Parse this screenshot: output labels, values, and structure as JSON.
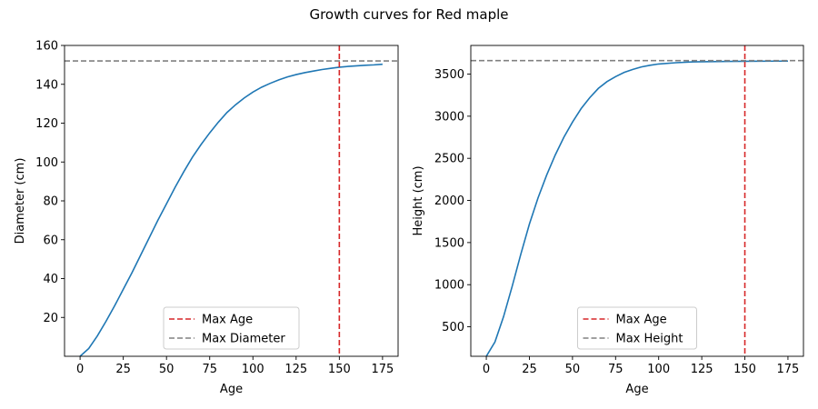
{
  "figure": {
    "title": "Growth curves for Red maple"
  },
  "chart_data": [
    {
      "type": "line",
      "xlabel": "Age",
      "ylabel": "Diameter (cm)",
      "xlim": [
        -9,
        184
      ],
      "ylim": [
        0,
        160
      ],
      "xticks": [
        0,
        25,
        50,
        75,
        100,
        125,
        150,
        175
      ],
      "yticks": [
        20,
        40,
        60,
        80,
        100,
        120,
        140,
        160
      ],
      "grid": false,
      "legend_position": "bottom-center",
      "series": [
        {
          "color": "#1f77b4",
          "style": "solid",
          "x": [
            0,
            5,
            10,
            15,
            20,
            25,
            30,
            35,
            40,
            45,
            50,
            55,
            60,
            65,
            70,
            75,
            80,
            85,
            90,
            95,
            100,
            105,
            110,
            115,
            120,
            125,
            130,
            135,
            140,
            145,
            150,
            155,
            160,
            165,
            170,
            175
          ],
          "y": [
            0,
            4,
            10.5,
            18,
            26,
            34.5,
            43,
            52,
            61,
            70,
            78.5,
            87,
            95,
            102.5,
            109,
            115,
            120.5,
            125.5,
            129.5,
            133,
            136,
            138.5,
            140.5,
            142.3,
            143.8,
            145,
            146,
            146.8,
            147.6,
            148.2,
            148.8,
            149.2,
            149.5,
            149.8,
            150,
            150.3
          ]
        }
      ],
      "reference_lines": [
        {
          "orientation": "vertical",
          "value": 150,
          "color": "#d62728",
          "style": "dashed",
          "label": "Max Age"
        },
        {
          "orientation": "horizontal",
          "value": 152,
          "color": "#808080",
          "style": "dashed",
          "label": "Max Diameter"
        }
      ]
    },
    {
      "type": "line",
      "xlabel": "Age",
      "ylabel": "Height (cm)",
      "xlim": [
        -9,
        184
      ],
      "ylim": [
        150,
        3840
      ],
      "xticks": [
        0,
        25,
        50,
        75,
        100,
        125,
        150,
        175
      ],
      "yticks": [
        500,
        1000,
        1500,
        2000,
        2500,
        3000,
        3500
      ],
      "grid": false,
      "legend_position": "bottom-center",
      "series": [
        {
          "color": "#1f77b4",
          "style": "solid",
          "x": [
            0,
            5,
            10,
            15,
            20,
            25,
            30,
            35,
            40,
            45,
            50,
            55,
            60,
            65,
            70,
            75,
            80,
            85,
            90,
            95,
            100,
            110,
            120,
            130,
            140,
            150,
            160,
            170,
            175
          ],
          "y": [
            150,
            320,
            620,
            980,
            1360,
            1720,
            2030,
            2300,
            2540,
            2750,
            2930,
            3090,
            3220,
            3330,
            3410,
            3470,
            3520,
            3555,
            3585,
            3605,
            3620,
            3635,
            3645,
            3648,
            3650,
            3652,
            3653,
            3654,
            3655
          ]
        }
      ],
      "reference_lines": [
        {
          "orientation": "vertical",
          "value": 150,
          "color": "#d62728",
          "style": "dashed",
          "label": "Max Age"
        },
        {
          "orientation": "horizontal",
          "value": 3660,
          "color": "#808080",
          "style": "dashed",
          "label": "Max Height"
        }
      ]
    }
  ]
}
